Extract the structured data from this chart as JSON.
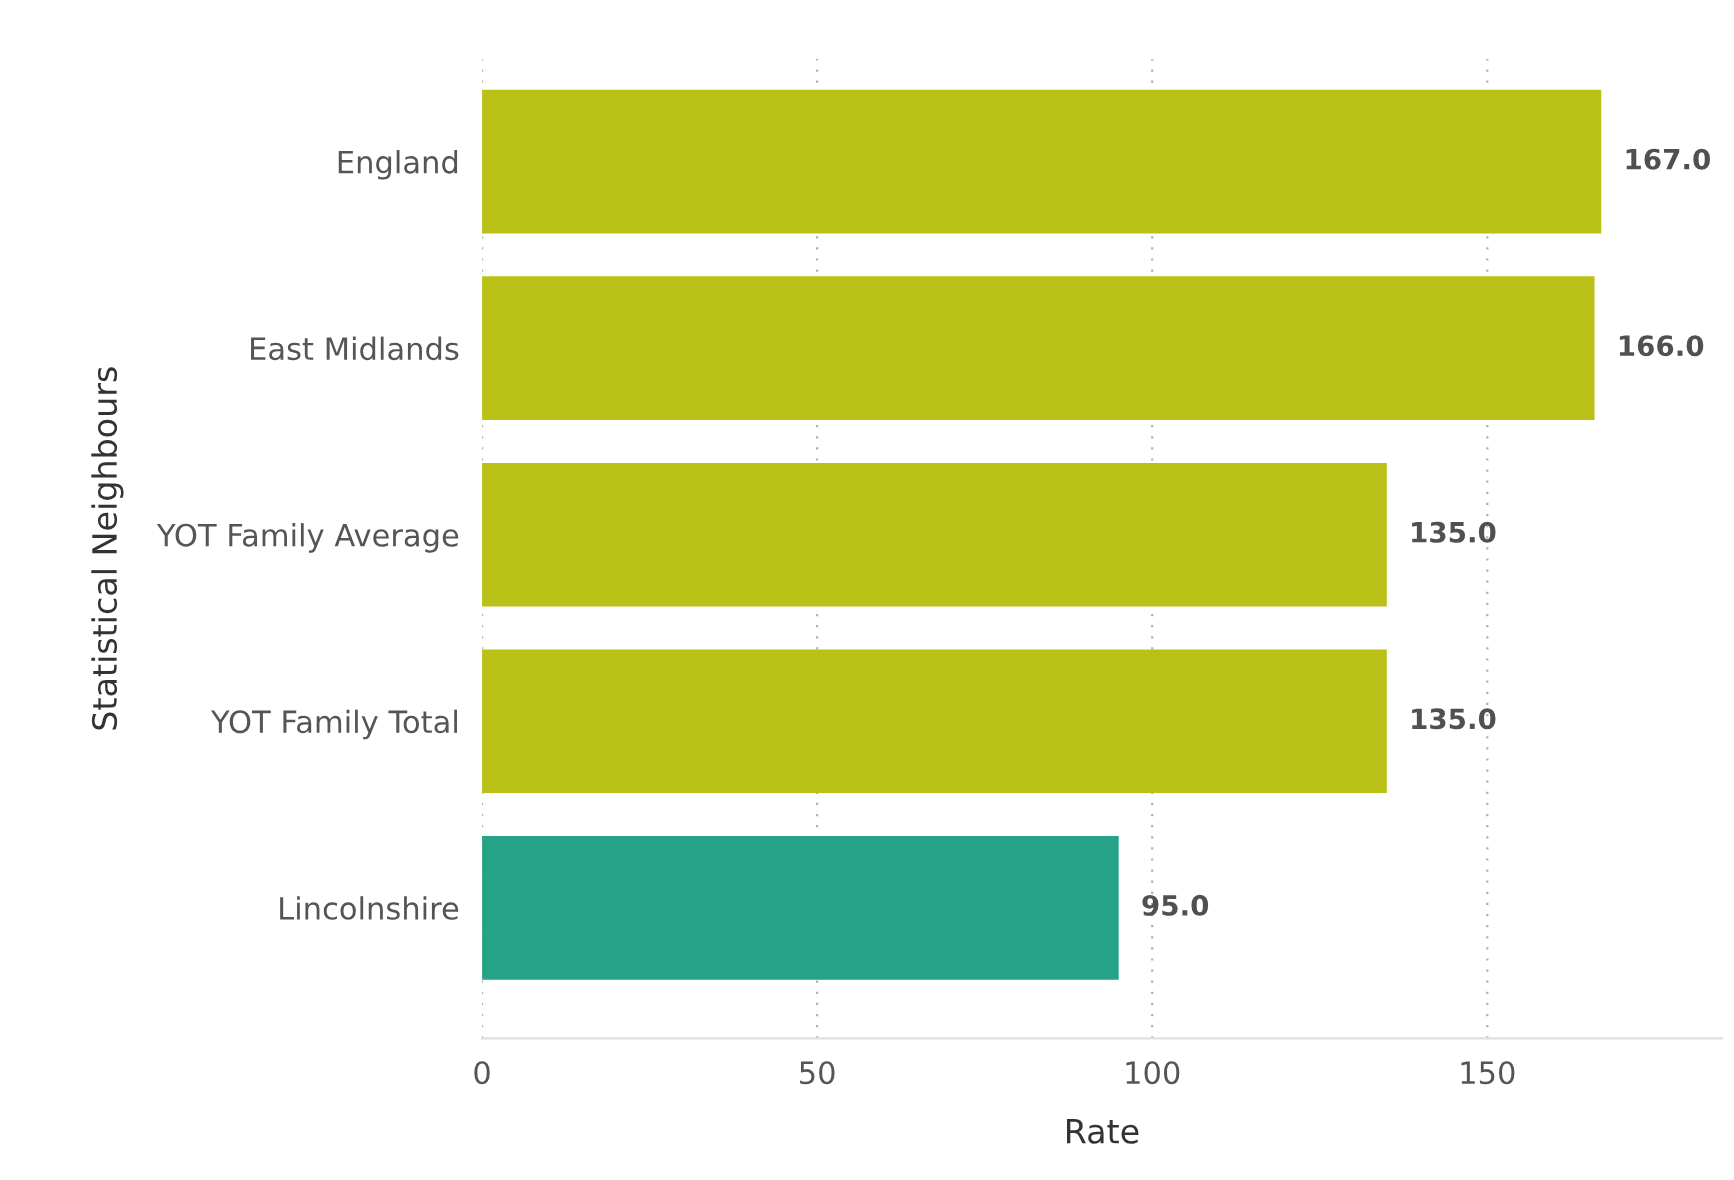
{
  "chart_data": {
    "type": "bar",
    "orientation": "horizontal",
    "categories": [
      "England",
      "East Midlands",
      "YOT Family Average",
      "YOT Family Total",
      "Lincolnshire"
    ],
    "values": [
      167.0,
      166.0,
      135.0,
      135.0,
      95.0
    ],
    "colors": [
      "#b9c016",
      "#b9c016",
      "#b9c016",
      "#b9c016",
      "#26a386"
    ],
    "xlim": [
      0,
      185
    ],
    "xticks": [
      0,
      50,
      100,
      150
    ],
    "xlabel": "Rate",
    "ylabel": "Statistical Neighbours",
    "value_labels": [
      "167.0",
      "166.0",
      "135.0",
      "135.0",
      "95.0"
    ],
    "grid": "x"
  }
}
